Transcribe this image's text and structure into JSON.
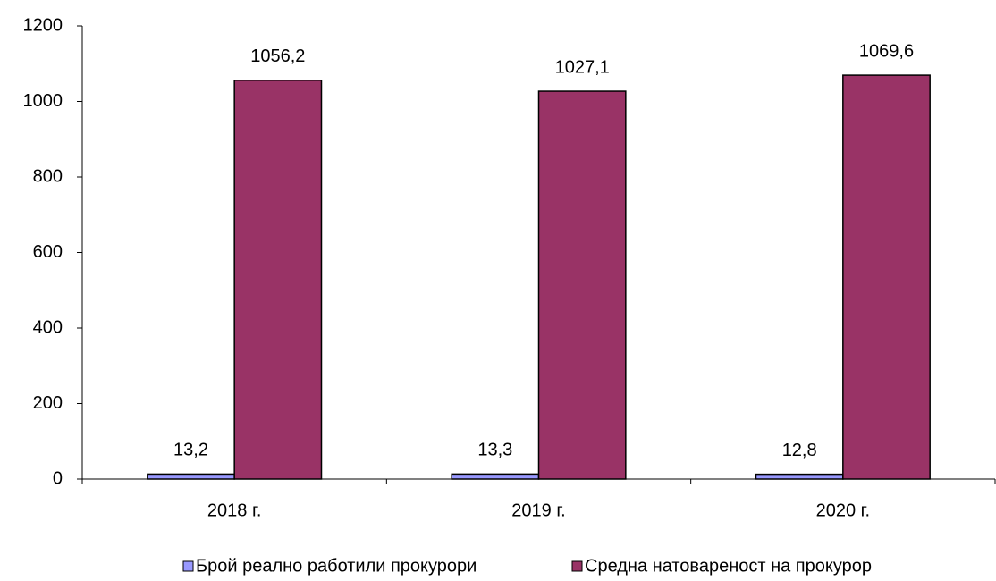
{
  "chart_data": {
    "type": "bar",
    "categories": [
      "2018 г.",
      "2019 г.",
      "2020 г."
    ],
    "series": [
      {
        "name": "Брой реално работили прокурори",
        "color": "#9999ff",
        "values": [
          13.2,
          13.3,
          12.8
        ],
        "value_labels": [
          "13,2",
          "13,3",
          "12,8"
        ]
      },
      {
        "name": "Средна натовареност на прокурор",
        "color": "#993366",
        "values": [
          1056.2,
          1027.1,
          1069.6
        ],
        "value_labels": [
          "1056,2",
          "1027,1",
          "1069,6"
        ]
      }
    ],
    "ylim": [
      0,
      1200
    ],
    "yticks": [
      0,
      200,
      400,
      600,
      800,
      1000,
      1200
    ],
    "grid": false,
    "legend": "bottom"
  }
}
